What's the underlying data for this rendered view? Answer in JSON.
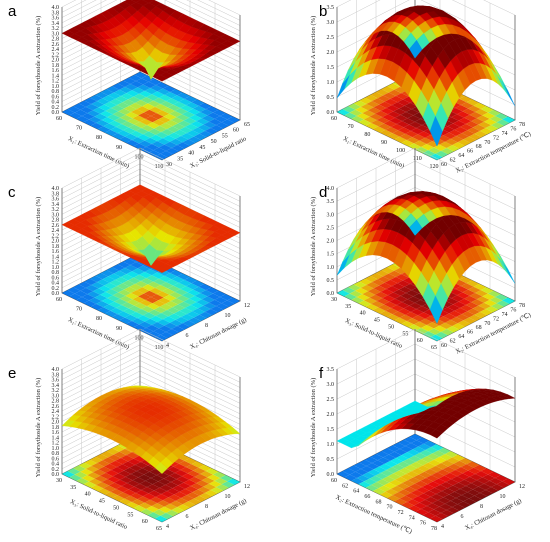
{
  "chart_data": [
    {
      "type": "surface3d",
      "panel": "a",
      "zlabel": "Yield of forsythoside A extraction (%)",
      "xlabel": "X₁: Extraction time (min)",
      "ylabel": "X₃: Solid-to-liquid ratio",
      "zticks": [
        "0.0",
        "0.2",
        "0.4",
        "0.6",
        "0.8",
        "1.0",
        "1.2",
        "1.4",
        "1.6",
        "1.8",
        "2.0",
        "2.2",
        "2.4",
        "2.6",
        "2.8",
        "3.0",
        "3.2",
        "3.4",
        "3.6",
        "3.8",
        "4.0"
      ],
      "xticks": [
        "60",
        "70",
        "80",
        "90",
        "100",
        "110"
      ],
      "yticks": [
        "30",
        "35",
        "40",
        "45",
        "50",
        "55",
        "60",
        "65"
      ],
      "surface_shape": "inverted-cone",
      "z_center": 1.4,
      "z_edge": 3.0
    },
    {
      "type": "surface3d",
      "panel": "b",
      "zlabel": "Yield of forsythoside A extraction (%)",
      "xlabel": "X₁: Extraction time (min)",
      "ylabel": "X₂: Extraction temperature (℃)",
      "zticks": [
        "0.0",
        "0.5",
        "1.0",
        "1.5",
        "2.0",
        "2.5",
        "3.0",
        "3.5"
      ],
      "xticks": [
        "60",
        "70",
        "80",
        "90",
        "100",
        "110",
        "120"
      ],
      "yticks": [
        "60",
        "62",
        "64",
        "66",
        "68",
        "70",
        "72",
        "74",
        "76",
        "78"
      ],
      "surface_shape": "dome",
      "z_min": 0.3,
      "z_max": 3.5
    },
    {
      "type": "surface3d",
      "panel": "c",
      "zlabel": "Yield of forsythoside A extraction (%)",
      "xlabel": "X₁: Extraction time (min)",
      "ylabel": "X₄: Chitosan dosage (g)",
      "zticks": [
        "0.0",
        "0.2",
        "0.4",
        "0.6",
        "0.8",
        "1.0",
        "1.2",
        "1.4",
        "1.6",
        "1.8",
        "2.0",
        "2.2",
        "2.4",
        "2.6",
        "2.8",
        "3.0",
        "3.2",
        "3.4",
        "3.6",
        "3.8",
        "4.0"
      ],
      "xticks": [
        "60",
        "70",
        "80",
        "90",
        "100",
        "110"
      ],
      "yticks": [
        "4",
        "6",
        "8",
        "10",
        "12"
      ],
      "surface_shape": "inverted-cone",
      "z_center": 1.2,
      "z_edge": 2.6
    },
    {
      "type": "surface3d",
      "panel": "d",
      "zlabel": "Yield of forsythoside A extraction (%)",
      "xlabel": "X₃: Solid-to-liquid ratio",
      "ylabel": "X₂: Extraction temperature (℃)",
      "zticks": [
        "0.0",
        "0.5",
        "1.0",
        "1.5",
        "2.0",
        "2.5",
        "3.0",
        "3.5",
        "4.0"
      ],
      "xticks": [
        "30",
        "35",
        "40",
        "45",
        "50",
        "55",
        "60",
        "65"
      ],
      "yticks": [
        "60",
        "62",
        "64",
        "66",
        "68",
        "70",
        "72",
        "74",
        "76",
        "78"
      ],
      "surface_shape": "dome",
      "z_min": 0.5,
      "z_max": 3.8
    },
    {
      "type": "surface3d",
      "panel": "e",
      "zlabel": "Yield of forsythoside A extraction (%)",
      "xlabel": "X₃: Solid-to-liquid ratio",
      "ylabel": "X₄: Chitosan dosage (g)",
      "zticks": [
        "0.0",
        "0.2",
        "0.4",
        "0.6",
        "0.8",
        "1.0",
        "1.2",
        "1.4",
        "1.6",
        "1.8",
        "2.0",
        "2.2",
        "2.4",
        "2.6",
        "2.8",
        "3.0",
        "3.2",
        "3.4",
        "3.6",
        "3.8",
        "4.0"
      ],
      "xticks": [
        "30",
        "35",
        "40",
        "45",
        "50",
        "55",
        "60",
        "65"
      ],
      "yticks": [
        "4",
        "6",
        "8",
        "10",
        "12"
      ],
      "surface_shape": "dome",
      "z_min": 1.8,
      "z_max": 2.6
    },
    {
      "type": "surface3d",
      "panel": "f",
      "zlabel": "Yield of forsythoside A extraction (%)",
      "xlabel": "X₂: Extraction temperature (℃)",
      "ylabel": "X₄: Chitosan dosage (g)",
      "zticks": [
        "0.0",
        "0.5",
        "1.0",
        "1.5",
        "2.0",
        "2.5",
        "3.0",
        "3.5"
      ],
      "xticks": [
        "60",
        "62",
        "64",
        "66",
        "68",
        "70",
        "72",
        "74",
        "76",
        "78"
      ],
      "yticks": [
        "4",
        "6",
        "8",
        "10",
        "12"
      ],
      "surface_shape": "ridge",
      "z_min": 1.1,
      "z_max": 3.1
    }
  ]
}
